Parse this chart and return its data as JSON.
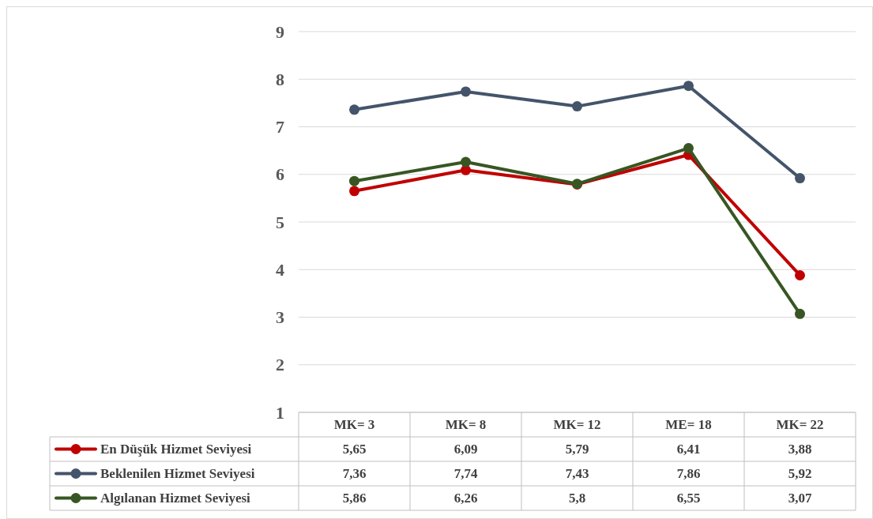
{
  "chart_data": {
    "type": "line",
    "categories": [
      "MK= 3",
      "MK= 8",
      "MK= 12",
      "ME= 18",
      "MK= 22"
    ],
    "series": [
      {
        "name": "En Düşük Hizmet Seviyesi",
        "color": "#c00000",
        "values": [
          5.65,
          6.09,
          5.79,
          6.41,
          3.88
        ],
        "value_labels": [
          "5,65",
          "6,09",
          "5,79",
          "6,41",
          "3,88"
        ]
      },
      {
        "name": "Beklenilen Hizmet Seviyesi",
        "color": "#44546a",
        "values": [
          7.36,
          7.74,
          7.43,
          7.86,
          5.92
        ],
        "value_labels": [
          "7,36",
          "7,74",
          "7,43",
          "7,86",
          "5,92"
        ]
      },
      {
        "name": "Algılanan Hizmet Seviyesi",
        "color": "#375623",
        "values": [
          5.86,
          6.26,
          5.8,
          6.55,
          3.07
        ],
        "value_labels": [
          "5,86",
          "6,26",
          "5,8",
          "6,55",
          "3,07"
        ]
      }
    ],
    "ylim": [
      1,
      9
    ],
    "yticks": [
      1,
      2,
      3,
      4,
      5,
      6,
      7,
      8,
      9
    ],
    "grid": "y",
    "legend": "bottom",
    "marker": "circle",
    "line_style": "solid"
  }
}
